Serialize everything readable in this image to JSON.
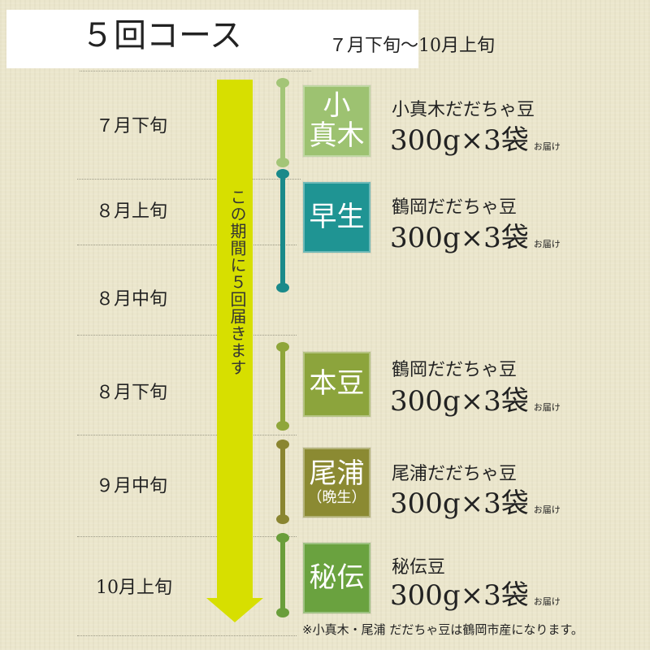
{
  "header": {
    "title": "５回コース",
    "range": "７月下旬〜10月上旬"
  },
  "arrow_text": "この期間に５回届きます",
  "months": [
    "７月下旬",
    "８月上旬",
    "８月中旬",
    "８月下旬",
    "９月中旬",
    "10月上旬"
  ],
  "items": [
    {
      "badge": "小\n真木",
      "badge_sub": "",
      "name": "小真木だだちゃ豆",
      "amount": "300g×3袋",
      "suffix": "お届け",
      "color": "#9dc271"
    },
    {
      "badge": "早生",
      "badge_sub": "",
      "name": "鶴岡だだちゃ豆",
      "amount": "300g×3袋",
      "suffix": "お届け",
      "color": "#1f9493"
    },
    {
      "badge": "本豆",
      "badge_sub": "",
      "name": "鶴岡だだちゃ豆",
      "amount": "300g×3袋",
      "suffix": "お届け",
      "color": "#8ca43c"
    },
    {
      "badge": "尾浦",
      "badge_sub": "（晩生）",
      "name": "尾浦だだちゃ豆",
      "amount": "300g×3袋",
      "suffix": "お届け",
      "color": "#8b8a32"
    },
    {
      "badge": "秘伝",
      "badge_sub": "",
      "name": "秘伝豆",
      "amount": "300g×3袋",
      "suffix": "お届け",
      "color": "#6aa23f"
    }
  ],
  "note": "※小真木・尾浦 だだちゃ豆は鶴岡市産になります。",
  "colors": {
    "arrow": "#d7df00",
    "background": "#ebe6cc"
  }
}
